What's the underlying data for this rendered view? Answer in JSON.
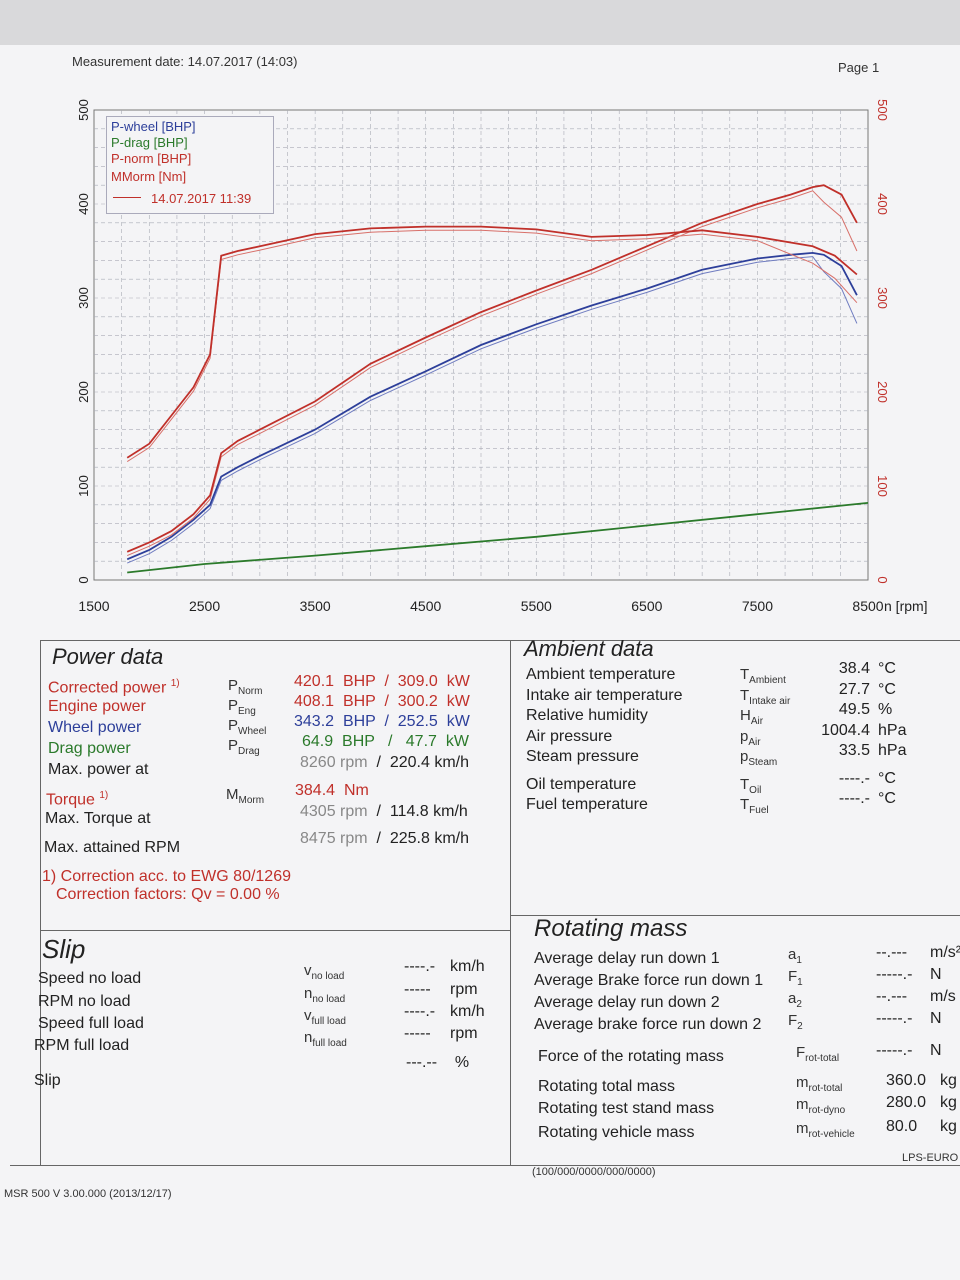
{
  "header": {
    "measurement_date": "Measurement date: 14.07.2017 (14:03)",
    "page": "Page 1"
  },
  "chart_data": {
    "type": "line",
    "xlabel": "n [rpm]",
    "xlim": [
      1500,
      8500
    ],
    "x_ticks": [
      "1500",
      "2500",
      "3500",
      "4500",
      "5500",
      "6500",
      "7500",
      "8500"
    ],
    "ylim_left": [
      0,
      500
    ],
    "y_ticks_left": [
      "0",
      "100",
      "200",
      "300",
      "400",
      "500"
    ],
    "ylim_right": [
      0,
      500
    ],
    "y_ticks_right": [
      "0",
      "100",
      "200",
      "300",
      "400",
      "500"
    ],
    "legend": {
      "position": "top-left",
      "entries": [
        "P-wheel [BHP]",
        "P-drag [BHP]",
        "P-norm [BHP]",
        "MMorm [Nm]"
      ],
      "run_label": "14.07.2017 11:39"
    },
    "colors": {
      "wheel": "#2d3f9a",
      "drag": "#2b7a2b",
      "norm": "#c0302a",
      "torque": "#c0302a",
      "torque_ghost": "#d8706a"
    },
    "series": [
      {
        "name": "P-wheel [BHP]",
        "color": "#2d3f9a",
        "x": [
          1800,
          2000,
          2200,
          2400,
          2550,
          2650,
          2800,
          3000,
          3500,
          4000,
          4500,
          5000,
          5500,
          6000,
          6500,
          7000,
          7500,
          7800,
          8000,
          8100,
          8260,
          8400
        ],
        "y": [
          22,
          32,
          46,
          64,
          80,
          110,
          120,
          132,
          160,
          195,
          222,
          250,
          272,
          292,
          310,
          330,
          342,
          346,
          348,
          346,
          334,
          303
        ]
      },
      {
        "name": "P-drag [BHP]",
        "color": "#2b7a2b",
        "x": [
          1800,
          2500,
          3500,
          4500,
          5500,
          6500,
          7500,
          8500
        ],
        "y": [
          8,
          17,
          26,
          36,
          46,
          58,
          70,
          82
        ]
      },
      {
        "name": "P-norm [BHP]",
        "color": "#c0302a",
        "x": [
          1800,
          2000,
          2200,
          2400,
          2550,
          2650,
          2800,
          3000,
          3500,
          4000,
          4500,
          5000,
          5500,
          6000,
          6500,
          7000,
          7500,
          7800,
          8000,
          8100,
          8260,
          8400
        ],
        "y": [
          30,
          40,
          52,
          70,
          90,
          135,
          148,
          160,
          190,
          230,
          258,
          285,
          308,
          330,
          355,
          380,
          400,
          410,
          418,
          420,
          410,
          380
        ]
      },
      {
        "name": "MMorm [Nm]",
        "color": "#c0302a",
        "x": [
          1800,
          2000,
          2200,
          2400,
          2550,
          2650,
          2800,
          3000,
          3500,
          4000,
          4500,
          5000,
          5500,
          6000,
          6500,
          7000,
          7500,
          8000,
          8200,
          8400
        ],
        "y": [
          130,
          145,
          175,
          205,
          240,
          345,
          350,
          355,
          368,
          374,
          376,
          376,
          373,
          365,
          367,
          372,
          365,
          355,
          345,
          325
        ]
      }
    ]
  },
  "power": {
    "title": "Power data",
    "rows": [
      {
        "label": "Corrected power",
        "note": "1)",
        "sym": "P",
        "sub": "Norm",
        "v1": "420.1",
        "u1": "BHP",
        "sep": "/",
        "v2": "309.0",
        "u2": "kW"
      },
      {
        "label": "Engine power",
        "note": "",
        "sym": "P",
        "sub": "Eng",
        "v1": "408.1",
        "u1": "BHP",
        "sep": "/",
        "v2": "300.2",
        "u2": "kW"
      },
      {
        "label": "Wheel power",
        "note": "",
        "sym": "P",
        "sub": "Wheel",
        "v1": "343.2",
        "u1": "BHP",
        "sep": "/",
        "v2": "252.5",
        "u2": "kW"
      },
      {
        "label": "Drag power",
        "note": "",
        "sym": "P",
        "sub": "Drag",
        "v1": "64.9",
        "u1": "BHP",
        "sep": "/",
        "v2": "47.7",
        "u2": "kW"
      }
    ],
    "max_power_label": "Max. power at",
    "max_power_rpm": "8260",
    "max_power_rpm_unit": "rpm",
    "max_power_speed": "220.4",
    "max_power_speed_unit": "km/h",
    "torque_label": "Torque",
    "torque_note": "1)",
    "torque_sym": "M",
    "torque_sub": "Morm",
    "torque_value": "384.4",
    "torque_unit": "Nm",
    "max_torque_label": "Max. Torque at",
    "max_torque_rpm": "4305",
    "max_torque_rpm_unit": "rpm",
    "max_torque_speed": "114.8",
    "max_torque_speed_unit": "km/h",
    "max_rpm_label": "Max. attained RPM",
    "max_rpm_rpm": "8475",
    "max_rpm_rpm_unit": "rpm",
    "max_rpm_speed": "225.8",
    "max_rpm_speed_unit": "km/h",
    "correction_note": "1) Correction acc. to EWG 80/1269",
    "correction_factor": "Correction factors: Qv =   0.00 %",
    "sep": "/"
  },
  "ambient": {
    "title": "Ambient data",
    "rows": [
      {
        "label": "Ambient temperature",
        "sym": "T",
        "sub": "Ambient",
        "value": "38.4",
        "unit": "°C"
      },
      {
        "label": "Intake air temperature",
        "sym": "T",
        "sub": "Intake air",
        "value": "27.7",
        "unit": "°C"
      },
      {
        "label": "Relative humidity",
        "sym": "H",
        "sub": "Air",
        "value": "49.5",
        "unit": "%"
      },
      {
        "label": "Air pressure",
        "sym": "p",
        "sub": "Air",
        "value": "1004.4",
        "unit": "hPa"
      },
      {
        "label": "Steam pressure",
        "sym": "p",
        "sub": "Steam",
        "value": "33.5",
        "unit": "hPa"
      },
      {
        "label": "Oil temperature",
        "sym": "T",
        "sub": "Oil",
        "value": "----.-",
        "unit": "°C"
      },
      {
        "label": "Fuel temperature",
        "sym": "T",
        "sub": "Fuel",
        "value": "----.-",
        "unit": "°C"
      }
    ]
  },
  "slip": {
    "title": "Slip",
    "rows": [
      {
        "label": "Speed no load",
        "sym": "v",
        "sub": "no load",
        "value": "----.-",
        "unit": "km/h"
      },
      {
        "label": "RPM no load",
        "sym": "n",
        "sub": "no load",
        "value": "-----",
        "unit": "rpm"
      },
      {
        "label": "Speed full load",
        "sym": "v",
        "sub": "full load",
        "value": "----.-",
        "unit": "km/h"
      },
      {
        "label": "RPM full load",
        "sym": "n",
        "sub": "full load",
        "value": "-----",
        "unit": "rpm"
      }
    ],
    "slip_label": "Slip",
    "slip_value": "---.--",
    "slip_unit": "%"
  },
  "rotating": {
    "title": "Rotating mass",
    "rows": [
      {
        "label": "Average delay run down 1",
        "sym": "a",
        "sub": "1",
        "value": "--.---",
        "unit": "m/s²"
      },
      {
        "label": "Average Brake force run down 1",
        "sym": "F",
        "sub": "1",
        "value": "-----.-",
        "unit": "N"
      },
      {
        "label": "Average delay run down 2",
        "sym": "a",
        "sub": "2",
        "value": "--.---",
        "unit": "m/s"
      },
      {
        "label": "Average brake force run down 2",
        "sym": "F",
        "sub": "2",
        "value": "-----.-",
        "unit": "N"
      },
      {
        "label": "Force of the rotating mass",
        "sym": "F",
        "sub": "rot-total",
        "value": "-----.-",
        "unit": "N"
      },
      {
        "label": "Rotating total mass",
        "sym": "m",
        "sub": "rot-total",
        "value": "360.0",
        "unit": "kg"
      },
      {
        "label": "Rotating test stand mass",
        "sym": "m",
        "sub": "rot-dyno",
        "value": "280.0",
        "unit": "kg"
      },
      {
        "label": "Rotating vehicle mass",
        "sym": "m",
        "sub": "rot-vehicle",
        "value": "80.0",
        "unit": "kg"
      }
    ]
  },
  "footer": {
    "code": "(100/000/0000/000/0000)",
    "brand": "LPS-EURO",
    "software": "MSR 500 V 3.00.000 (2013/12/17)"
  }
}
